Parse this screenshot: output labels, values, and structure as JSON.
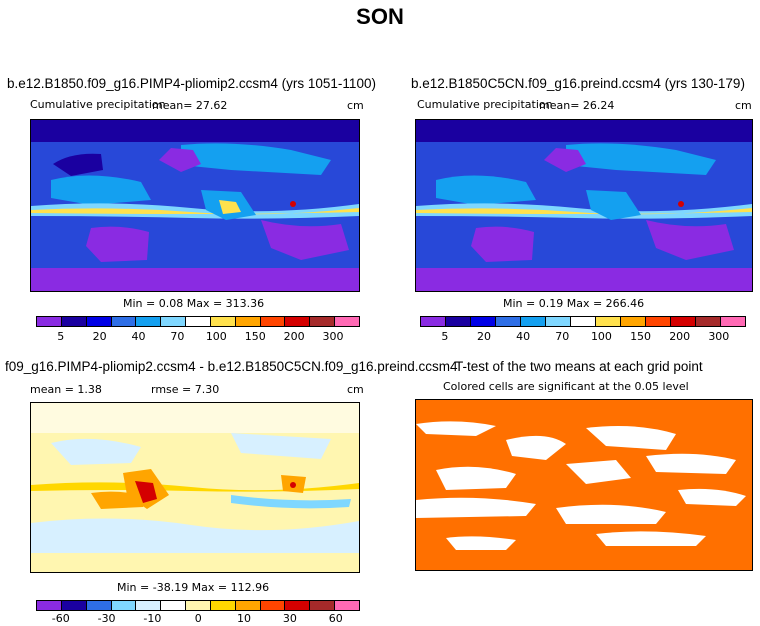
{
  "figure": {
    "title": "SON"
  },
  "panel1": {
    "title": "b.e12.B1850.f09_g16.PIMP4-pliomip2.ccsm4 (yrs 1051-1100)",
    "subtitle": "Cumulative precipitation",
    "mean": "mean=   27.62",
    "units": "cm",
    "minmax": "Min =    0.08 Max = 313.36"
  },
  "panel2": {
    "title": "b.e12.B1850C5CN.f09_g16.preind.ccsm4 (yrs 130-179)",
    "subtitle": "Cumulative precipitation",
    "mean": "mean=   26.24",
    "units": "cm",
    "minmax": "Min =    0.19 Max = 266.46"
  },
  "panel3": {
    "title": "f09_g16.PIMP4-pliomip2.ccsm4 - b.e12.B1850C5CN.f09_g16.preind.ccsm4",
    "mean": "mean =    1.38",
    "rmse": "rmse =    7.30",
    "units": "cm",
    "minmax": "Min = -38.19 Max = 112.96"
  },
  "panel4": {
    "title": "T-test of the two means at each grid point",
    "subtitle": "Colored cells are significant at the 0.05 level"
  },
  "colorbar_precip": {
    "colors": [
      "#8a2be2",
      "#1a00a0",
      "#0000e6",
      "#2e6ee6",
      "#14a0f0",
      "#7fd7ff",
      "#ffffff",
      "#ffe14d",
      "#ffa500",
      "#ff4500",
      "#d40000",
      "#a52a2a",
      "#ff69b4"
    ],
    "labels": [
      "5",
      "20",
      "40",
      "70",
      "100",
      "150",
      "200",
      "300"
    ]
  },
  "colorbar_diff": {
    "colors": [
      "#8a2be2",
      "#1a00a0",
      "#2e6ee6",
      "#7fd7ff",
      "#d7f0ff",
      "#ffffff",
      "#fff6b0",
      "#ffd700",
      "#ffa500",
      "#ff4500",
      "#d40000",
      "#a52a2a",
      "#ff69b4"
    ],
    "labels": [
      "-60",
      "-30",
      "-10",
      "0",
      "10",
      "30",
      "60"
    ]
  },
  "colors": {
    "ttest_fill": "#ff7000",
    "land_outline": "#000000"
  }
}
